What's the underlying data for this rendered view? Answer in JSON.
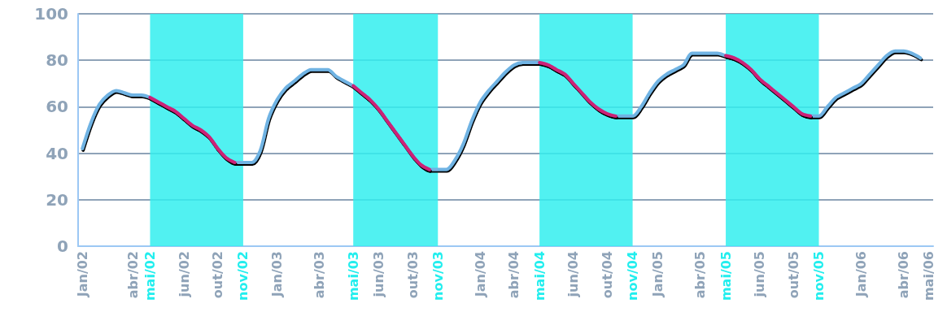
{
  "chart_data": {
    "type": "line",
    "categories": [
      "Jan/02",
      null,
      null,
      null,
      null,
      null,
      "abr/02",
      null,
      "mai/02",
      null,
      null,
      null,
      "jun/02",
      null,
      null,
      null,
      "out/02",
      null,
      null,
      "nov/02",
      null,
      null,
      null,
      "Jan/03",
      null,
      null,
      null,
      null,
      "abr/03",
      null,
      null,
      null,
      "mai/03",
      null,
      null,
      "jun/03",
      null,
      null,
      null,
      "out/03",
      null,
      null,
      "nov/03",
      null,
      null,
      null,
      null,
      "Jan/04",
      null,
      null,
      null,
      "abr/04",
      null,
      null,
      "mai/04",
      null,
      null,
      null,
      "jun/04",
      null,
      null,
      null,
      "out/04",
      null,
      null,
      "nov/04",
      null,
      null,
      "Jan/05",
      null,
      null,
      null,
      null,
      "abr/05",
      null,
      null,
      "mai/05",
      null,
      null,
      null,
      "jun/05",
      null,
      null,
      null,
      "out/05",
      null,
      null,
      "nov/05",
      null,
      null,
      null,
      null,
      "Jan/06",
      null,
      null,
      null,
      null,
      "abr/06",
      null,
      null,
      "mai/06"
    ],
    "series": [
      {
        "color": "#6fb3e3",
        "values": [
          42,
          53,
          61,
          65,
          67,
          66,
          65,
          65,
          64,
          62,
          60,
          58,
          55,
          52,
          50,
          47,
          42,
          38,
          36,
          36,
          36,
          41,
          55,
          63,
          68,
          71,
          74,
          76,
          76,
          76,
          73,
          71,
          69,
          66,
          63,
          59,
          54,
          49,
          44,
          39,
          35,
          33,
          33,
          33,
          37,
          44,
          54,
          62,
          67,
          71,
          75,
          78,
          79,
          79,
          79,
          78,
          76,
          74,
          70,
          66,
          62,
          59,
          57,
          56,
          56,
          56,
          60,
          66,
          71,
          74,
          76,
          78,
          83,
          83,
          83,
          83,
          82,
          81,
          79,
          76,
          72,
          69,
          66,
          63,
          60,
          57,
          56,
          56,
          60,
          64,
          66,
          68,
          70,
          74,
          78,
          82,
          84,
          84,
          83,
          81,
          null
        ]
      },
      {
        "color": "#cc2277",
        "values": [
          null,
          null,
          null,
          null,
          null,
          null,
          null,
          null,
          64,
          62,
          60,
          58,
          55,
          52,
          50,
          47,
          42,
          38,
          36,
          null,
          null,
          null,
          null,
          null,
          null,
          null,
          null,
          null,
          null,
          null,
          null,
          null,
          69,
          66,
          63,
          59,
          54,
          49,
          44,
          39,
          35,
          33,
          null,
          null,
          null,
          null,
          null,
          null,
          null,
          null,
          null,
          null,
          null,
          null,
          79,
          78,
          76,
          74,
          70,
          66,
          62,
          59,
          57,
          56,
          null,
          null,
          null,
          null,
          null,
          null,
          null,
          null,
          null,
          null,
          null,
          null,
          82,
          81,
          79,
          76,
          72,
          69,
          66,
          63,
          60,
          57,
          56,
          null,
          null,
          null,
          null,
          null,
          null,
          null,
          null,
          null,
          null,
          null,
          null,
          null,
          null
        ]
      }
    ],
    "ylim": [
      0,
      100
    ],
    "yticks": [
      0,
      20,
      40,
      60,
      80,
      100
    ],
    "grid": "y",
    "marker": "none",
    "line_style": "solid",
    "bands": [
      {
        "axis": "x",
        "from": "mai/02",
        "to": "nov/02",
        "color": "#33eeee"
      },
      {
        "axis": "x",
        "from": "mai/03",
        "to": "nov/03",
        "color": "#33eeee"
      },
      {
        "axis": "x",
        "from": "mai/04",
        "to": "nov/04",
        "color": "#33eeee"
      },
      {
        "axis": "x",
        "from": "mai/05",
        "to": "nov/05",
        "color": "#33eeee"
      }
    ]
  }
}
